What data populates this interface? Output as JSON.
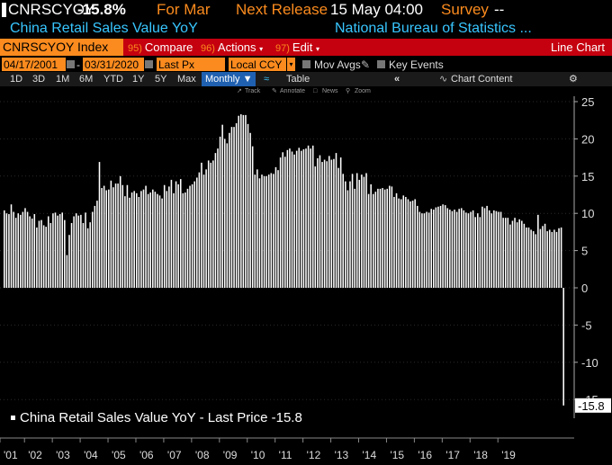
{
  "header": {
    "ticker": "CNRSCYOY",
    "last_value": "-15.8%",
    "for_label": "For Mar",
    "next_release_label": "Next Release",
    "next_release_value": "15 May 04:00",
    "survey_label": "Survey",
    "survey_value": "--"
  },
  "subheader": {
    "name": "China Retail Sales Value YoY",
    "source": "National Bureau of Statistics ..."
  },
  "toolbar": {
    "security": "CNRSCYOY Index",
    "compare_num": "95)",
    "compare_label": "Compare",
    "actions_num": "96)",
    "actions_label": "Actions",
    "edit_num": "97)",
    "edit_label": "Edit",
    "chart_type": "Line Chart"
  },
  "settings": {
    "start_date": "04/17/2001",
    "end_date": "03/31/2020",
    "field": "Last Px",
    "currency": "Local CCY",
    "mov_avgs": "Mov Avgs",
    "key_events": "Key Events"
  },
  "ranges": {
    "items": [
      "1D",
      "3D",
      "1M",
      "6M",
      "YTD",
      "1Y",
      "5Y",
      "Max"
    ],
    "frequency": "Monthly ▼",
    "table": "Table",
    "chart_content": "Chart Content"
  },
  "annotations": {
    "track": "Track",
    "annotate": "Annotate",
    "news": "News",
    "zoom": "Zoom"
  },
  "colors": {
    "amber": "#fb8b1e",
    "cyan": "#38c6ff",
    "red_bar": "#c5000f",
    "bar": "#ffffff"
  },
  "chart_data": {
    "type": "bar",
    "title": "",
    "legend": "China Retail Sales Value YoY - Last Price -15.8",
    "last_price_label": "-15.8",
    "ylim": [
      -17,
      26
    ],
    "yticks": [
      "25",
      "20",
      "15",
      "10",
      "5",
      "0",
      "-5",
      "-10",
      "-15"
    ],
    "xticks": [
      "'01",
      "'02",
      "'03",
      "'04",
      "'05",
      "'06",
      "'07",
      "'08",
      "'09",
      "'10",
      "'11",
      "'12",
      "'13",
      "'14",
      "'15",
      "'16",
      "'17",
      "'18",
      "'19"
    ],
    "x_start": "2001-04",
    "frequency": "monthly",
    "values": [
      10.4,
      10.0,
      9.9,
      11.2,
      10.2,
      9.4,
      10.0,
      9.8,
      10.2,
      10.7,
      10.2,
      9.6,
      9.3,
      9.9,
      8.1,
      9.0,
      9.1,
      8.4,
      8.2,
      9.6,
      8.7,
      10.0,
      10.1,
      9.7,
      9.9,
      10.1,
      9.1,
      4.4,
      7.1,
      8.7,
      9.6,
      10.0,
      9.7,
      9.8,
      8.7,
      10.1,
      8.0,
      8.8,
      10.2,
      11.0,
      11.7,
      16.9,
      13.4,
      13.7,
      13.1,
      13.2,
      14.4,
      13.5,
      14.0,
      14.0,
      15.0,
      13.8,
      12.3,
      13.8,
      12.1,
      12.8,
      13.0,
      12.7,
      12.2,
      13.0,
      13.2,
      13.7,
      12.6,
      12.8,
      13.2,
      12.9,
      12.6,
      12.4,
      12.0,
      13.8,
      13.0,
      13.6,
      14.5,
      12.7,
      14.3,
      13.9,
      14.6,
      12.7,
      12.8,
      13.3,
      13.7,
      13.9,
      14.3,
      14.8,
      15.5,
      16.8,
      15.2,
      15.9,
      17.1,
      16.8,
      17.1,
      18.1,
      18.7,
      20.3,
      21.9,
      20.0,
      19.4,
      20.8,
      21.6,
      21.6,
      22.1,
      23.1,
      23.3,
      23.2,
      23.2,
      22.0,
      20.8,
      19.0,
      15.2,
      15.9,
      14.7,
      15.2,
      15.0,
      15.0,
      15.2,
      15.4,
      15.3,
      16.2,
      15.8,
      17.5,
      18.2,
      17.6,
      18.5,
      18.7,
      18.3,
      17.9,
      18.4,
      18.8,
      18.4,
      18.6,
      18.7,
      19.1,
      18.7,
      19.1,
      16.3,
      17.4,
      17.8,
      16.9,
      17.2,
      17.0,
      17.7,
      17.2,
      17.3,
      18.1,
      16.1,
      17.5,
      15.3,
      14.3,
      13.1,
      14.3,
      15.3,
      13.3,
      15.4,
      14.5,
      15.2,
      14.9,
      15.4,
      12.6,
      13.9,
      12.6,
      12.9,
      13.3,
      13.3,
      13.4,
      13.2,
      13.3,
      13.7,
      13.6,
      12.2,
      12.7,
      12.0,
      11.9,
      12.4,
      12.2,
      11.9,
      11.6,
      11.7,
      11.9,
      11.0,
      10.2,
      10.0,
      10.0,
      10.2,
      10.1,
      10.6,
      10.5,
      10.8,
      10.9,
      11.0,
      11.2,
      11.1,
      10.7,
      10.5,
      10.3,
      10.5,
      10.2,
      10.6,
      10.7,
      10.4,
      10.1,
      10.0,
      10.2,
      10.4,
      9.5,
      10.0,
      9.5,
      10.9,
      10.7,
      11.0,
      10.4,
      10.0,
      10.4,
      10.3,
      10.2,
      10.2,
      9.4,
      9.4,
      9.4,
      8.5,
      9.0,
      9.4,
      8.8,
      9.2,
      9.0,
      8.6,
      8.1,
      8.1,
      7.8,
      7.6,
      7.2,
      9.8,
      7.9,
      8.3,
      8.6,
      7.6,
      7.8,
      7.5,
      7.8,
      7.5,
      8.0,
      8.1,
      -15.8
    ]
  }
}
